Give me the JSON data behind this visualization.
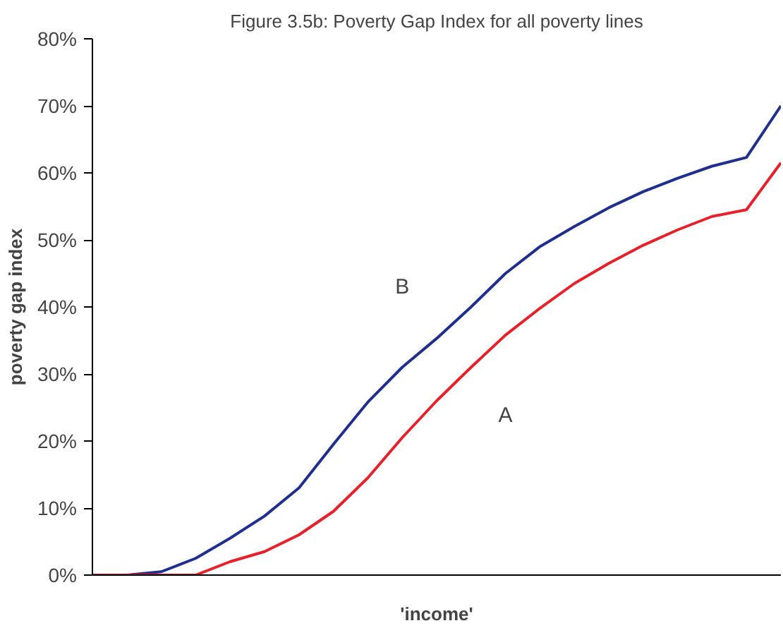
{
  "chart_data": {
    "type": "line",
    "title": "Figure 3.5b: Poverty Gap Index for all poverty lines",
    "xlabel": "'income'",
    "ylabel": "poverty gap index",
    "categories": [
      null,
      null,
      null,
      null,
      null,
      null,
      null,
      null,
      null,
      null,
      null,
      null,
      null,
      null,
      null,
      null,
      null,
      null,
      null,
      null,
      null
    ],
    "series": [
      {
        "name": "B",
        "color": "#1f2f8f",
        "values": [
          0,
          0,
          0.5,
          2.5,
          5.5,
          8.8,
          13,
          19.5,
          25.8,
          31,
          35.3,
          40,
          45,
          49,
          52,
          54.8,
          57.2,
          59.2,
          61,
          62.3,
          70
        ]
      },
      {
        "name": "A",
        "color": "#e8202a",
        "values": [
          0,
          0,
          0,
          0,
          2,
          3.5,
          6,
          9.5,
          14.5,
          20.5,
          26,
          31,
          35.8,
          39.8,
          43.5,
          46.5,
          49.2,
          51.5,
          53.5,
          54.5,
          61.5
        ]
      }
    ],
    "ylim": [
      0,
      80
    ],
    "yticks": [
      {
        "value": 0,
        "label": "0%"
      },
      {
        "value": 10,
        "label": "10%"
      },
      {
        "value": 20,
        "label": "20%"
      },
      {
        "value": 30,
        "label": "30%"
      },
      {
        "value": 40,
        "label": "40%"
      },
      {
        "value": 50,
        "label": "50%"
      },
      {
        "value": 60,
        "label": "60%"
      },
      {
        "value": 70,
        "label": "70%"
      },
      {
        "value": 80,
        "label": "80%"
      }
    ],
    "grid": false,
    "legend": false,
    "tick_labels": "y",
    "marker": "none",
    "line_style": "solid"
  }
}
